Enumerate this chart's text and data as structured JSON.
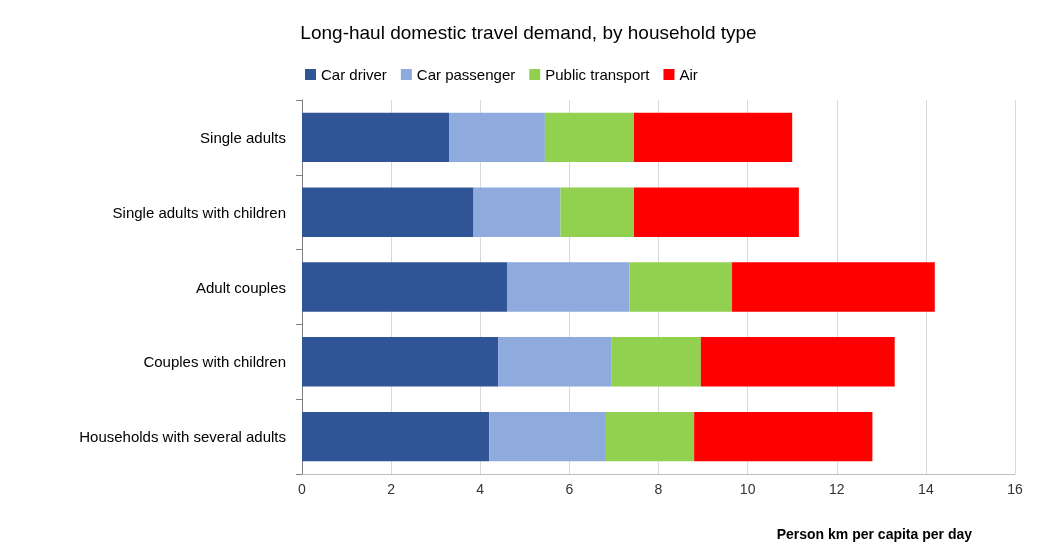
{
  "chart_data": {
    "type": "bar",
    "orientation": "horizontal",
    "stacked": true,
    "title": "Long-haul domestic travel demand, by household type",
    "xlabel": "Person km per capita per day",
    "categories": [
      "Single adults",
      "Single adults with children",
      "Adult couples",
      "Couples with children",
      "Households with several adults"
    ],
    "series": [
      {
        "name": "Car driver",
        "color": "#2f5597",
        "values": [
          3.3,
          3.85,
          4.6,
          4.4,
          4.2
        ]
      },
      {
        "name": "Car passenger",
        "color": "#8faadc",
        "values": [
          2.15,
          1.95,
          2.75,
          2.55,
          2.6
        ]
      },
      {
        "name": "Public transport",
        "color": "#92d050",
        "values": [
          2.0,
          1.65,
          2.3,
          2.0,
          2.0
        ]
      },
      {
        "name": "Air",
        "color": "#ff0000",
        "values": [
          3.55,
          3.7,
          4.55,
          4.35,
          4.0
        ]
      }
    ],
    "xlim": [
      0,
      16
    ],
    "xticks": [
      0,
      2,
      4,
      6,
      8,
      10,
      12,
      14,
      16
    ],
    "grid": "x",
    "legend": "top"
  }
}
